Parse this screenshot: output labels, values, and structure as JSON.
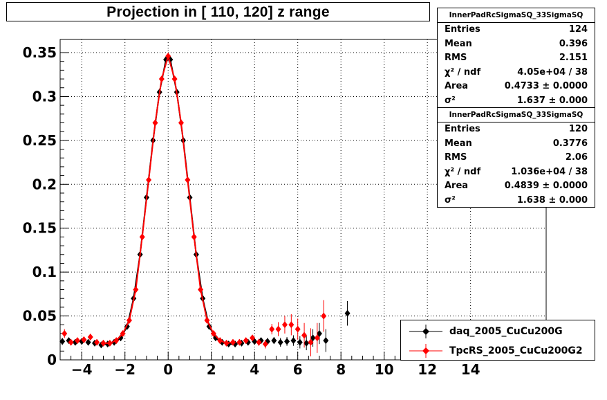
{
  "chart_data": {
    "type": "scatter",
    "title": "Projection in [ 110, 120] z range",
    "xlim": [
      -5,
      17.5
    ],
    "ylim": [
      0,
      0.365
    ],
    "x_ticks": [
      "−4",
      "−2",
      "0",
      "2",
      "4",
      "6",
      "8",
      "10",
      "12",
      "14"
    ],
    "x_tick_values": [
      -4,
      -2,
      0,
      2,
      4,
      6,
      8,
      10,
      12,
      14
    ],
    "y_ticks": [
      "0",
      "0.05",
      "0.1",
      "0.15",
      "0.2",
      "0.25",
      "0.3",
      "0.35"
    ],
    "y_tick_values": [
      0,
      0.05,
      0.1,
      0.15,
      0.2,
      0.25,
      0.3,
      0.35
    ],
    "grid": true,
    "legend_position": "bottom-right",
    "series": [
      {
        "name": "daq_2005_CuCu200G",
        "color": "#000000",
        "x": [
          -4.9,
          -4.6,
          -4.3,
          -4.0,
          -3.7,
          -3.4,
          -3.1,
          -2.8,
          -2.5,
          -2.2,
          -1.9,
          -1.6,
          -1.3,
          -1.0,
          -0.7,
          -0.4,
          -0.1,
          0.0,
          0.1,
          0.4,
          0.7,
          1.0,
          1.3,
          1.6,
          1.9,
          2.2,
          2.5,
          2.8,
          3.1,
          3.4,
          3.7,
          4.0,
          4.3,
          4.6,
          4.9,
          5.2,
          5.5,
          5.8,
          6.1,
          6.4,
          6.7,
          7.0,
          7.3,
          8.3
        ],
        "y": [
          0.021,
          0.022,
          0.02,
          0.021,
          0.02,
          0.019,
          0.017,
          0.018,
          0.02,
          0.025,
          0.038,
          0.07,
          0.12,
          0.185,
          0.25,
          0.305,
          0.342,
          0.345,
          0.342,
          0.305,
          0.25,
          0.185,
          0.12,
          0.07,
          0.038,
          0.025,
          0.02,
          0.018,
          0.018,
          0.019,
          0.02,
          0.021,
          0.022,
          0.021,
          0.022,
          0.02,
          0.021,
          0.022,
          0.02,
          0.019,
          0.025,
          0.03,
          0.022,
          0.053
        ],
        "yerr": [
          0.004,
          0.003,
          0.002,
          0.002,
          0.002,
          0.002,
          0.002,
          0.002,
          0.002,
          0.002,
          0.002,
          0.002,
          0.002,
          0.002,
          0.002,
          0.002,
          0.002,
          0.002,
          0.002,
          0.002,
          0.002,
          0.002,
          0.002,
          0.002,
          0.002,
          0.002,
          0.002,
          0.002,
          0.002,
          0.002,
          0.002,
          0.003,
          0.003,
          0.004,
          0.004,
          0.005,
          0.005,
          0.006,
          0.007,
          0.008,
          0.01,
          0.012,
          0.013,
          0.014
        ]
      },
      {
        "name": "TpcRS_2005_CuCu200G2",
        "color": "#ff0000",
        "x": [
          -4.8,
          -4.5,
          -4.2,
          -3.9,
          -3.6,
          -3.3,
          -3.0,
          -2.7,
          -2.4,
          -2.1,
          -1.8,
          -1.5,
          -1.2,
          -0.9,
          -0.6,
          -0.3,
          0.0,
          0.3,
          0.6,
          0.9,
          1.2,
          1.5,
          1.8,
          2.1,
          2.4,
          2.7,
          3.0,
          3.3,
          3.6,
          3.9,
          4.2,
          4.5,
          4.8,
          5.1,
          5.4,
          5.7,
          6.0,
          6.3,
          6.6,
          6.9,
          7.2
        ],
        "y": [
          0.03,
          0.02,
          0.022,
          0.023,
          0.026,
          0.02,
          0.019,
          0.019,
          0.022,
          0.03,
          0.045,
          0.08,
          0.14,
          0.205,
          0.27,
          0.32,
          0.346,
          0.32,
          0.27,
          0.205,
          0.14,
          0.08,
          0.045,
          0.03,
          0.022,
          0.019,
          0.02,
          0.02,
          0.022,
          0.025,
          0.02,
          0.018,
          0.035,
          0.035,
          0.04,
          0.04,
          0.035,
          0.028,
          0.02,
          0.025,
          0.05
        ],
        "yerr": [
          0.005,
          0.003,
          0.002,
          0.002,
          0.002,
          0.002,
          0.002,
          0.002,
          0.002,
          0.002,
          0.002,
          0.002,
          0.002,
          0.002,
          0.002,
          0.002,
          0.002,
          0.002,
          0.002,
          0.002,
          0.002,
          0.002,
          0.002,
          0.002,
          0.002,
          0.002,
          0.002,
          0.003,
          0.003,
          0.003,
          0.004,
          0.005,
          0.006,
          0.008,
          0.01,
          0.012,
          0.012,
          0.014,
          0.016,
          0.017,
          0.018
        ]
      }
    ]
  },
  "stats": [
    {
      "title": "InnerPadRcSigmaSQ_33SigmaSQ",
      "rows": [
        {
          "key": "Entries",
          "value": "124"
        },
        {
          "key": "Mean",
          "value": "0.396"
        },
        {
          "key": "RMS",
          "value": "2.151"
        },
        {
          "key": "χ² / ndf",
          "value": "4.05e+04 / 38"
        },
        {
          "key": "Area",
          "value": "0.4733 ± 0.0000"
        },
        {
          "key": "σ²",
          "value": "1.637 ± 0.000"
        }
      ]
    },
    {
      "title": "InnerPadRcSigmaSQ_33SigmaSQ",
      "rows": [
        {
          "key": "Entries",
          "value": "120"
        },
        {
          "key": "Mean",
          "value": "0.3776"
        },
        {
          "key": "RMS",
          "value": "2.06"
        },
        {
          "key": "χ² / ndf",
          "value": "1.036e+04 / 38"
        },
        {
          "key": "Area",
          "value": "0.4839 ± 0.0000"
        },
        {
          "key": "σ²",
          "value": "1.638 ± 0.000"
        }
      ]
    }
  ],
  "legend": [
    {
      "label": "daq_2005_CuCu200G",
      "color": "#000000"
    },
    {
      "label": "TpcRS_2005_CuCu200G2",
      "color": "#ff0000"
    }
  ]
}
